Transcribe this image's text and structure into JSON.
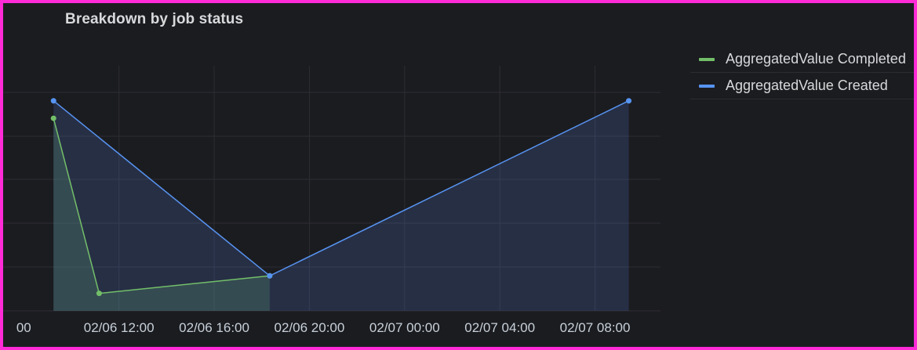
{
  "panel": {
    "title": "Breakdown by job status"
  },
  "chart_data": {
    "type": "area",
    "title": "Breakdown by job status",
    "xlabel": "",
    "ylabel": "",
    "x_ticks": [
      "00",
      "02/06 12:00",
      "02/06 16:00",
      "02/06 20:00",
      "02/07 00:00",
      "02/07 04:00",
      "02/07 08:00"
    ],
    "xlim": [
      "2024-02-06T07:08",
      "2024-02-07T10:45"
    ],
    "ylim": [
      0,
      5.6
    ],
    "grid": true,
    "legend_position": "right",
    "series": [
      {
        "name": "AggregatedValue Completed",
        "color": "#73bf69",
        "points": [
          {
            "x": "2024-02-06T09:15",
            "y": 4.4
          },
          {
            "x": "2024-02-06T11:10",
            "y": 0.4
          },
          {
            "x": "2024-02-06T18:20",
            "y": 0.8
          }
        ]
      },
      {
        "name": "AggregatedValue Created",
        "color": "#5794f2",
        "points": [
          {
            "x": "2024-02-06T09:15",
            "y": 4.8
          },
          {
            "x": "2024-02-06T18:20",
            "y": 0.8
          },
          {
            "x": "2024-02-07T09:25",
            "y": 4.8
          }
        ]
      }
    ]
  }
}
